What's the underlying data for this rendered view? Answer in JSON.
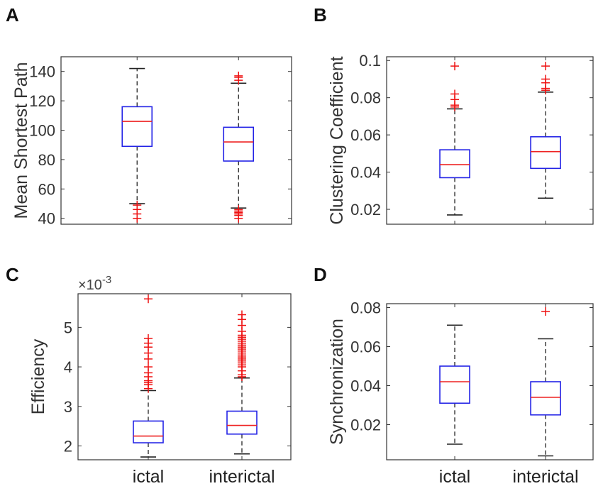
{
  "chart_data": [
    {
      "type": "box",
      "panel": "A",
      "ylabel": "Mean Shortest Path",
      "ylim": [
        36,
        150
      ],
      "yticks": [
        40,
        60,
        80,
        100,
        120,
        140
      ],
      "ytick_labels": [
        "40",
        "60",
        "80",
        "100",
        "120",
        "140"
      ],
      "categories": [
        "ictal",
        "interictal"
      ],
      "show_xlabels": false,
      "boxes": [
        {
          "category": "ictal",
          "whisker_low": 50,
          "q1": 89,
          "median": 106,
          "q3": 116,
          "whisker_high": 142,
          "outliers": [
            40,
            43,
            46,
            49
          ]
        },
        {
          "category": "interictal",
          "whisker_low": 47,
          "q1": 79,
          "median": 92,
          "q3": 102,
          "whisker_high": 132,
          "outliers": [
            40,
            42,
            43,
            44,
            45,
            46,
            134,
            136,
            137
          ]
        }
      ]
    },
    {
      "type": "box",
      "panel": "B",
      "ylabel": "Clustering Coefficient",
      "ylim": [
        0.012,
        0.102
      ],
      "yticks": [
        0.02,
        0.04,
        0.06,
        0.08,
        0.1
      ],
      "ytick_labels": [
        "0.02",
        "0.04",
        "0.06",
        "0.08",
        "0.1"
      ],
      "categories": [
        "ictal",
        "interictal"
      ],
      "show_xlabels": false,
      "boxes": [
        {
          "category": "ictal",
          "whisker_low": 0.017,
          "q1": 0.037,
          "median": 0.044,
          "q3": 0.052,
          "whisker_high": 0.074,
          "outliers": [
            0.075,
            0.076,
            0.079,
            0.082,
            0.097
          ]
        },
        {
          "category": "interictal",
          "whisker_low": 0.026,
          "q1": 0.042,
          "median": 0.051,
          "q3": 0.059,
          "whisker_high": 0.083,
          "outliers": [
            0.084,
            0.085,
            0.088,
            0.09,
            0.097
          ]
        }
      ]
    },
    {
      "type": "box",
      "panel": "C",
      "ylabel": "Efficiency",
      "scale_base": "×10",
      "scale_exp": "-3",
      "ylim": [
        1.65,
        5.85
      ],
      "yticks": [
        2,
        3,
        4,
        5
      ],
      "ytick_labels": [
        "2",
        "3",
        "4",
        "5"
      ],
      "categories": [
        "ictal",
        "interictal"
      ],
      "show_xlabels": true,
      "boxes": [
        {
          "category": "ictal",
          "whisker_low": 1.72,
          "q1": 2.08,
          "median": 2.25,
          "q3": 2.63,
          "whisker_high": 3.4,
          "outliers": [
            3.45,
            3.55,
            3.6,
            3.65,
            3.75,
            3.85,
            4.0,
            4.2,
            4.35,
            4.5,
            4.6,
            4.72,
            5.72
          ]
        },
        {
          "category": "interictal",
          "whisker_low": 1.8,
          "q1": 2.3,
          "median": 2.52,
          "q3": 2.88,
          "whisker_high": 3.72,
          "outliers": [
            3.75,
            3.8,
            3.9,
            4.0,
            4.05,
            4.1,
            4.15,
            4.2,
            4.25,
            4.3,
            4.35,
            4.4,
            4.45,
            4.5,
            4.55,
            4.6,
            4.65,
            4.7,
            4.75,
            4.8,
            4.9,
            5.05,
            5.2,
            5.32
          ]
        }
      ]
    },
    {
      "type": "box",
      "panel": "D",
      "ylabel": "Synchronization",
      "ylim": [
        0.002,
        0.082
      ],
      "yticks": [
        0.02,
        0.04,
        0.06,
        0.08
      ],
      "ytick_labels": [
        "0.02",
        "0.04",
        "0.06",
        "0.08"
      ],
      "categories": [
        "ictal",
        "interictal"
      ],
      "show_xlabels": true,
      "boxes": [
        {
          "category": "ictal",
          "whisker_low": 0.01,
          "q1": 0.031,
          "median": 0.042,
          "q3": 0.05,
          "whisker_high": 0.071,
          "outliers": []
        },
        {
          "category": "interictal",
          "whisker_low": 0.004,
          "q1": 0.025,
          "median": 0.034,
          "q3": 0.042,
          "whisker_high": 0.064,
          "outliers": [
            0.078
          ]
        }
      ]
    }
  ],
  "colors": {
    "box": "#2323e6",
    "median": "#ee2222",
    "outlier": "#ee1111",
    "whisker": "#222222",
    "axis": "#333333"
  }
}
